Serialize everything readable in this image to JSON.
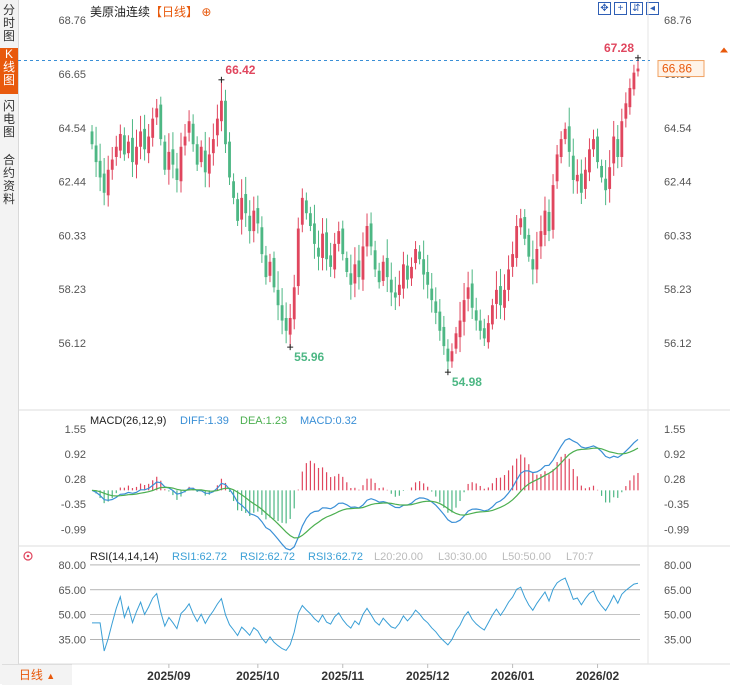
{
  "side_tabs": [
    {
      "label": "分时图",
      "active": false
    },
    {
      "label": "K线图",
      "active": true
    },
    {
      "label": "闪电图",
      "active": false
    },
    {
      "label": "合约资料",
      "active": false
    }
  ],
  "header": {
    "instrument": "美原油连续",
    "period": "【日线】",
    "toolbar_icons": [
      "fullscreen-icon",
      "crosshair-icon",
      "pan-icon",
      "back-icon"
    ]
  },
  "colors": {
    "up": "#e0465e",
    "down": "#4db784",
    "diff": "#3a8fd6",
    "dea": "#4caf50",
    "rsi": "#3a9fd6",
    "accent": "#e8590c"
  },
  "period_button": {
    "label": "日线",
    "arrow": "▲"
  },
  "chart_data": {
    "type": "candlestick",
    "price_axis": {
      "min": 53.5,
      "max": 68.76,
      "ticks": [
        "68.76",
        "66.65",
        "64.54",
        "62.44",
        "60.33",
        "58.23",
        "56.12"
      ]
    },
    "last_price": "66.86",
    "last_price_level": 66.86,
    "annotations": [
      {
        "label": "66.42",
        "value": 66.42,
        "bar": 32,
        "kind": "high"
      },
      {
        "label": "55.96",
        "value": 55.96,
        "bar": 49,
        "kind": "low"
      },
      {
        "label": "54.98",
        "value": 54.98,
        "bar": 88,
        "kind": "low"
      },
      {
        "label": "67.28",
        "value": 67.28,
        "bar": 135,
        "kind": "high"
      }
    ],
    "x_labels": [
      {
        "label": "2025/09",
        "bar": 19
      },
      {
        "label": "2025/10",
        "bar": 41
      },
      {
        "label": "2025/11",
        "bar": 62
      },
      {
        "label": "2025/12",
        "bar": 83
      },
      {
        "label": "2026/01",
        "bar": 104
      },
      {
        "label": "2026/02",
        "bar": 125
      }
    ],
    "closes": [
      63.9,
      63.2,
      62.6,
      62.0,
      62.9,
      63.3,
      63.8,
      64.3,
      63.5,
      64.0,
      63.2,
      63.8,
      64.4,
      63.7,
      64.2,
      64.9,
      65.3,
      64.1,
      62.9,
      63.6,
      63.1,
      62.5,
      63.8,
      64.2,
      64.8,
      63.9,
      63.1,
      63.8,
      62.8,
      63.5,
      64.1,
      64.9,
      65.6,
      63.9,
      62.6,
      61.8,
      60.9,
      61.8,
      61.2,
      60.5,
      61.3,
      60.8,
      59.6,
      58.7,
      59.3,
      58.3,
      57.6,
      57.0,
      56.6,
      57.1,
      58.3,
      60.6,
      61.8,
      61.2,
      60.7,
      60.0,
      59.5,
      60.4,
      59.4,
      59.1,
      60.0,
      60.5,
      59.6,
      58.9,
      58.4,
      59.2,
      58.7,
      59.9,
      60.7,
      59.9,
      59.0,
      58.5,
      59.3,
      58.7,
      58.1,
      57.9,
      58.4,
      59.2,
      58.6,
      59.1,
      59.8,
      59.4,
      58.8,
      58.4,
      57.8,
      57.3,
      56.6,
      56.0,
      55.4,
      55.8,
      56.5,
      57.0,
      57.8,
      58.3,
      57.5,
      57.0,
      56.6,
      56.3,
      56.9,
      57.6,
      58.2,
      57.6,
      58.2,
      59.0,
      59.6,
      60.7,
      61.0,
      60.2,
      59.5,
      59.0,
      59.8,
      60.5,
      61.3,
      60.5,
      62.3,
      63.5,
      64.1,
      64.5,
      63.6,
      62.5,
      62.7,
      62.0,
      62.9,
      63.7,
      64.1,
      63.2,
      62.6,
      62.1,
      63.0,
      64.2,
      63.4,
      64.8,
      65.5,
      66.1,
      66.7,
      66.86
    ],
    "ohlc_note": "",
    "macd": {
      "label": "MACD(26,12,9)",
      "diff_label": "DIFF:1.39",
      "dea_label": "DEA:1.23",
      "macd_label": "MACD:0.32",
      "min": -1.25,
      "max": 1.72,
      "ticks": [
        "1.55",
        "0.92",
        "0.28",
        "-0.35",
        "-0.99"
      ]
    },
    "rsi": {
      "label": "RSI(14,14,14)",
      "rsi1_label": "RSI1:62.72",
      "rsi2_label": "RSI2:62.72",
      "rsi3_label": "RSI3:62.72",
      "levels": [
        "L20:20.00",
        "L30:30.00",
        "L50:50.00",
        "L70:7"
      ],
      "min": 25,
      "max": 83,
      "ticks": [
        "80.00",
        "65.00",
        "50.00",
        "35.00"
      ]
    }
  }
}
